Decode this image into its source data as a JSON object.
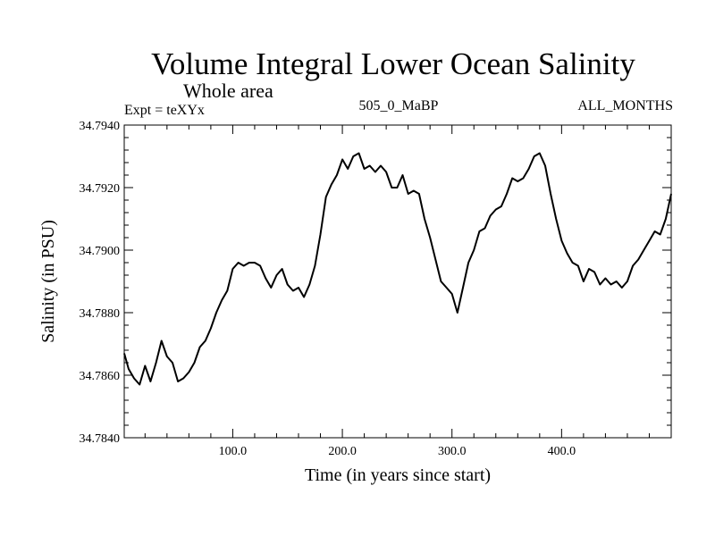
{
  "chart_data": {
    "type": "line",
    "title": "Volume Integral Lower Ocean Salinity",
    "subtitle": "Whole area",
    "left_note": "Expt = teXYx",
    "center_note": "505_0_MaBP",
    "right_note": "ALL_MONTHS",
    "xlabel": "Time (in years since start)",
    "ylabel": "Salinity (in PSU)",
    "xlim": [
      1,
      500
    ],
    "ylim": [
      34.784,
      34.794
    ],
    "xticks": [
      100,
      200,
      300,
      400
    ],
    "xtick_labels": [
      "100.0",
      "200.0",
      "300.0",
      "400.0"
    ],
    "yticks": [
      34.784,
      34.786,
      34.788,
      34.79,
      34.792,
      34.794
    ],
    "ytick_labels": [
      "34.7840",
      "34.7860",
      "34.7880",
      "34.7900",
      "34.7920",
      "34.7940"
    ],
    "grid": false,
    "series": [
      {
        "color": "#000000",
        "x": [
          1,
          5,
          10,
          15,
          20,
          25,
          30,
          35,
          40,
          45,
          50,
          55,
          60,
          65,
          70,
          75,
          80,
          85,
          90,
          95,
          100,
          105,
          110,
          115,
          120,
          125,
          130,
          135,
          140,
          145,
          150,
          155,
          160,
          165,
          170,
          175,
          180,
          185,
          190,
          195,
          200,
          205,
          210,
          215,
          220,
          225,
          230,
          235,
          240,
          245,
          250,
          255,
          260,
          265,
          270,
          275,
          280,
          285,
          290,
          295,
          300,
          305,
          310,
          315,
          320,
          325,
          330,
          335,
          340,
          345,
          350,
          355,
          360,
          365,
          370,
          375,
          380,
          385,
          390,
          395,
          400,
          405,
          410,
          415,
          420,
          425,
          430,
          435,
          440,
          445,
          450,
          455,
          460,
          465,
          470,
          475,
          480,
          485,
          490,
          495,
          500
        ],
        "y": [
          34.7867,
          34.7862,
          34.7859,
          34.7857,
          34.7863,
          34.7858,
          34.7864,
          34.7871,
          34.7866,
          34.7864,
          34.7858,
          34.7859,
          34.7861,
          34.7864,
          34.7869,
          34.7871,
          34.7875,
          34.788,
          34.7884,
          34.7887,
          34.7894,
          34.7896,
          34.7895,
          34.7896,
          34.7896,
          34.7895,
          34.7891,
          34.7888,
          34.7892,
          34.7894,
          34.7889,
          34.7887,
          34.7888,
          34.7885,
          34.7889,
          34.7895,
          34.7905,
          34.7917,
          34.7921,
          34.7924,
          34.7929,
          34.7926,
          34.793,
          34.7931,
          34.7926,
          34.7927,
          34.7925,
          34.7927,
          34.7925,
          34.792,
          34.792,
          34.7924,
          34.7918,
          34.7919,
          34.7918,
          34.791,
          34.7904,
          34.7897,
          34.789,
          34.7888,
          34.7886,
          34.788,
          34.7888,
          34.7896,
          34.79,
          34.7906,
          34.7907,
          34.7911,
          34.7913,
          34.7914,
          34.7918,
          34.7923,
          34.7922,
          34.7923,
          34.7926,
          34.793,
          34.7931,
          34.7927,
          34.7918,
          34.791,
          34.7903,
          34.7899,
          34.7896,
          34.7895,
          34.789,
          34.7894,
          34.7893,
          34.7889,
          34.7891,
          34.7889,
          34.789,
          34.7888,
          34.789,
          34.7895,
          34.7897,
          34.79,
          34.7903,
          34.7906,
          34.7905,
          34.791,
          34.7918
        ]
      }
    ]
  }
}
